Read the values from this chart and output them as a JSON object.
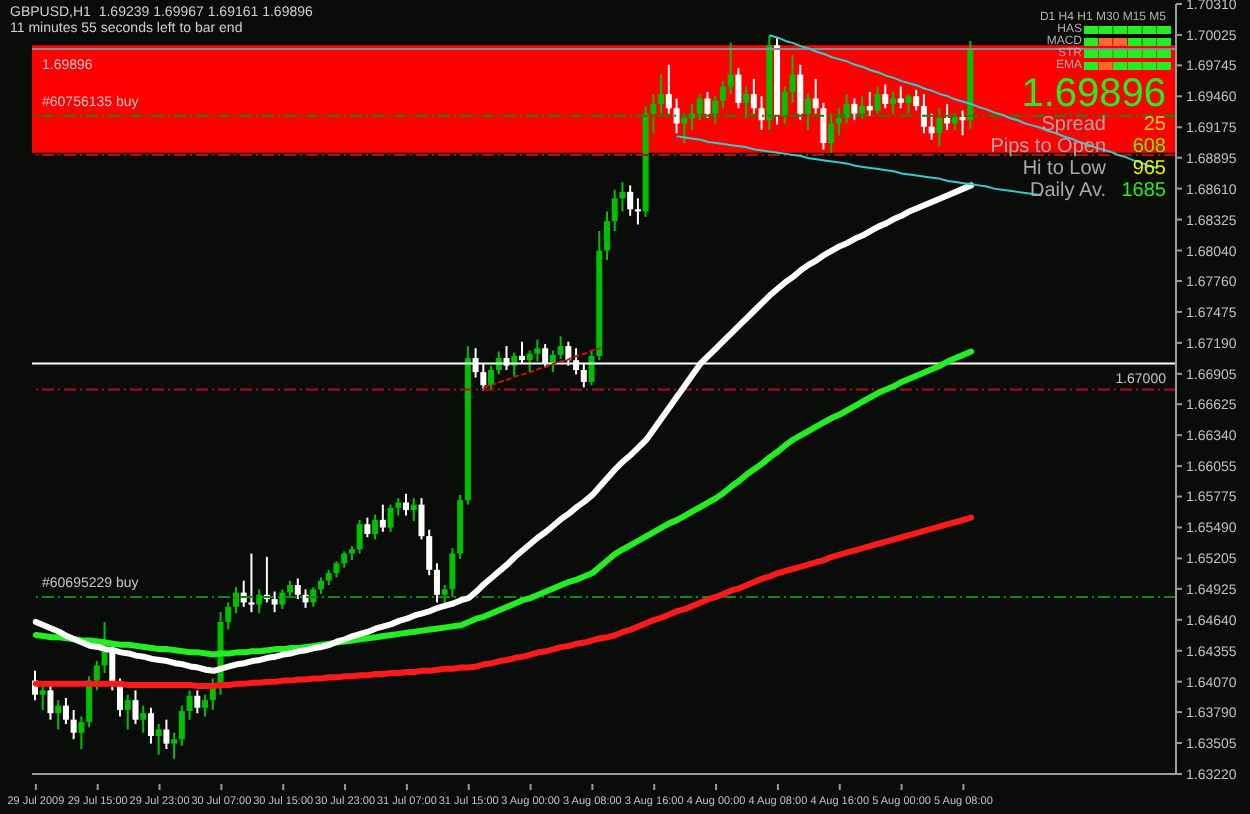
{
  "chart_data": {
    "type": "candlestick",
    "title": "GBPUSD,H1  1.69239 1.69967 1.69161 1.69896",
    "subtitle": "11 minutes 55 seconds left to bar end",
    "categories": [
      "29 Jul 2009",
      null,
      null,
      null,
      null,
      null,
      null,
      null,
      "29 Jul 15:00",
      null,
      null,
      null,
      null,
      null,
      null,
      null,
      "29 Jul 23:00",
      null,
      null,
      null,
      null,
      null,
      null,
      null,
      "30 Jul 07:00",
      null,
      null,
      null,
      null,
      null,
      null,
      null,
      "30 Jul 15:00",
      null,
      null,
      null,
      null,
      null,
      null,
      null,
      "30 Jul 23:00",
      null,
      null,
      null,
      null,
      null,
      null,
      null,
      "31 Jul 07:00",
      null,
      null,
      null,
      null,
      null,
      null,
      null,
      "31 Jul 15:00",
      null,
      null,
      null,
      null,
      null,
      null,
      null,
      "3 Aug 00:00",
      null,
      null,
      null,
      null,
      null,
      null,
      null,
      "3 Aug 08:00",
      null,
      null,
      null,
      null,
      null,
      null,
      null,
      "3 Aug 16:00",
      null,
      null,
      null,
      null,
      null,
      null,
      null,
      "4 Aug 00:00",
      null,
      null,
      null,
      null,
      null,
      null,
      null,
      "4 Aug 08:00",
      null,
      null,
      null,
      null,
      null,
      null,
      null,
      "4 Aug 16:00",
      null,
      null,
      null,
      null,
      null,
      null,
      null,
      "5 Aug 00:00",
      null,
      null,
      null,
      null,
      null,
      null,
      null,
      "5 Aug 08:00",
      null,
      null,
      null,
      null,
      null,
      null,
      null,
      null,
      null,
      null,
      null,
      null,
      null,
      null,
      null,
      null,
      null,
      null,
      null,
      null,
      null,
      null,
      null,
      null,
      null,
      null,
      null
    ],
    "ohlc": [
      [
        1.6408,
        1.6417,
        1.639,
        1.6395
      ],
      [
        1.6395,
        1.6405,
        1.6381,
        1.6399
      ],
      [
        1.6399,
        1.6404,
        1.6372,
        1.6378
      ],
      [
        1.6378,
        1.639,
        1.6363,
        1.6385
      ],
      [
        1.6385,
        1.6392,
        1.6368,
        1.6372
      ],
      [
        1.6372,
        1.6381,
        1.6354,
        1.636
      ],
      [
        1.636,
        1.6375,
        1.6345,
        1.637
      ],
      [
        1.637,
        1.6412,
        1.6365,
        1.6408
      ],
      [
        1.6408,
        1.6426,
        1.6399,
        1.6422
      ],
      [
        1.6422,
        1.6462,
        1.6415,
        1.6435
      ],
      [
        1.6435,
        1.644,
        1.6399,
        1.6404
      ],
      [
        1.6404,
        1.641,
        1.6375,
        1.6381
      ],
      [
        1.6381,
        1.6395,
        1.6363,
        1.639
      ],
      [
        1.639,
        1.6399,
        1.6368,
        1.6372
      ],
      [
        1.6372,
        1.6385,
        1.636,
        1.6378
      ],
      [
        1.6378,
        1.6383,
        1.635,
        1.6357
      ],
      [
        1.6357,
        1.6368,
        1.634,
        1.6363
      ],
      [
        1.6363,
        1.6372,
        1.6345,
        1.635
      ],
      [
        1.635,
        1.636,
        1.6336,
        1.6354
      ],
      [
        1.6354,
        1.6385,
        1.6348,
        1.638
      ],
      [
        1.638,
        1.6399,
        1.6372,
        1.6394
      ],
      [
        1.6394,
        1.6399,
        1.6378,
        1.6383
      ],
      [
        1.6383,
        1.6395,
        1.6375,
        1.639
      ],
      [
        1.639,
        1.641,
        1.6381,
        1.6404
      ],
      [
        1.6404,
        1.6471,
        1.6395,
        1.6462
      ],
      [
        1.6462,
        1.648,
        1.6455,
        1.6476
      ],
      [
        1.6476,
        1.6494,
        1.647,
        1.6489
      ],
      [
        1.6489,
        1.65,
        1.6476,
        1.648
      ],
      [
        1.648,
        1.6525,
        1.6471,
        1.6478
      ],
      [
        1.6478,
        1.6492,
        1.647,
        1.6487
      ],
      [
        1.6487,
        1.6522,
        1.648,
        1.6483
      ],
      [
        1.6483,
        1.649,
        1.6471,
        1.6478
      ],
      [
        1.6478,
        1.6492,
        1.6474,
        1.6489
      ],
      [
        1.6489,
        1.65,
        1.6485,
        1.6496
      ],
      [
        1.6496,
        1.6502,
        1.6483,
        1.6487
      ],
      [
        1.6487,
        1.6492,
        1.6475,
        1.648
      ],
      [
        1.648,
        1.6494,
        1.6476,
        1.6492
      ],
      [
        1.6492,
        1.6503,
        1.6488,
        1.65
      ],
      [
        1.65,
        1.651,
        1.6496,
        1.6507
      ],
      [
        1.6507,
        1.6518,
        1.6503,
        1.6516
      ],
      [
        1.6516,
        1.6527,
        1.6512,
        1.6525
      ],
      [
        1.6525,
        1.6532,
        1.6519,
        1.6529
      ],
      [
        1.6529,
        1.6556,
        1.6525,
        1.6552
      ],
      [
        1.6552,
        1.6558,
        1.654,
        1.6543
      ],
      [
        1.6543,
        1.6561,
        1.6538,
        1.6556
      ],
      [
        1.6556,
        1.657,
        1.6545,
        1.6549
      ],
      [
        1.6549,
        1.657,
        1.6545,
        1.6567
      ],
      [
        1.6567,
        1.6576,
        1.656,
        1.6572
      ],
      [
        1.6572,
        1.658,
        1.656,
        1.6565
      ],
      [
        1.6565,
        1.6576,
        1.6555,
        1.657
      ],
      [
        1.657,
        1.6576,
        1.6538,
        1.6541
      ],
      [
        1.6541,
        1.6547,
        1.6505,
        1.651
      ],
      [
        1.651,
        1.6516,
        1.648,
        1.6487
      ],
      [
        1.6487,
        1.6496,
        1.6474,
        1.6492
      ],
      [
        1.6492,
        1.653,
        1.6485,
        1.6525
      ],
      [
        1.6525,
        1.6579,
        1.652,
        1.6574
      ],
      [
        1.6574,
        1.6716,
        1.657,
        1.6705
      ],
      [
        1.6705,
        1.6714,
        1.6687,
        1.6692
      ],
      [
        1.6692,
        1.67,
        1.6675,
        1.668
      ],
      [
        1.668,
        1.6698,
        1.6676,
        1.6694
      ],
      [
        1.6694,
        1.6711,
        1.669,
        1.6705
      ],
      [
        1.6705,
        1.6716,
        1.6694,
        1.6698
      ],
      [
        1.6698,
        1.671,
        1.6688,
        1.6707
      ],
      [
        1.6707,
        1.672,
        1.67,
        1.6703
      ],
      [
        1.6703,
        1.6712,
        1.6692,
        1.6709
      ],
      [
        1.6709,
        1.6722,
        1.6702,
        1.6714
      ],
      [
        1.6714,
        1.6718,
        1.6696,
        1.67
      ],
      [
        1.67,
        1.6712,
        1.6692,
        1.6708
      ],
      [
        1.6708,
        1.6725,
        1.6704,
        1.6716
      ],
      [
        1.6716,
        1.672,
        1.6698,
        1.6703
      ],
      [
        1.6703,
        1.6714,
        1.669,
        1.6694
      ],
      [
        1.6694,
        1.67,
        1.6678,
        1.6683
      ],
      [
        1.6683,
        1.6712,
        1.668,
        1.6707
      ],
      [
        1.6707,
        1.6822,
        1.6703,
        1.6804
      ],
      [
        1.6804,
        1.684,
        1.6795,
        1.6831
      ],
      [
        1.6831,
        1.686,
        1.6822,
        1.6852
      ],
      [
        1.6852,
        1.6867,
        1.684,
        1.6858
      ],
      [
        1.6858,
        1.6864,
        1.6836,
        1.6842
      ],
      [
        1.6842,
        1.6852,
        1.6828,
        1.684
      ],
      [
        1.684,
        1.6937,
        1.6835,
        1.693
      ],
      [
        1.693,
        1.6948,
        1.6912,
        1.6939
      ],
      [
        1.6939,
        1.6966,
        1.693,
        1.6948
      ],
      [
        1.6948,
        1.6975,
        1.693,
        1.6935
      ],
      [
        1.6935,
        1.6944,
        1.6912,
        1.6921
      ],
      [
        1.6921,
        1.693,
        1.6903,
        1.6926
      ],
      [
        1.6926,
        1.6939,
        1.6915,
        1.693
      ],
      [
        1.693,
        1.6948,
        1.6924,
        1.6944
      ],
      [
        1.6944,
        1.695,
        1.6926,
        1.693
      ],
      [
        1.693,
        1.6946,
        1.6921,
        1.6942
      ],
      [
        1.6942,
        1.696,
        1.6935,
        1.6955
      ],
      [
        1.6955,
        1.6995,
        1.6948,
        1.6966
      ],
      [
        1.6966,
        1.6972,
        1.6935,
        1.694
      ],
      [
        1.694,
        1.6955,
        1.6926,
        1.6948
      ],
      [
        1.6948,
        1.6962,
        1.693,
        1.6935
      ],
      [
        1.6935,
        1.6946,
        1.6915,
        1.6924
      ],
      [
        1.6924,
        1.7002,
        1.6915,
        1.6993
      ],
      [
        1.6993,
        1.7,
        1.692,
        1.6928
      ],
      [
        1.6928,
        1.6955,
        1.6921,
        1.695
      ],
      [
        1.695,
        1.6984,
        1.694,
        1.6966
      ],
      [
        1.6966,
        1.6975,
        1.6924,
        1.693
      ],
      [
        1.693,
        1.6948,
        1.6915,
        1.6944
      ],
      [
        1.6944,
        1.6962,
        1.693,
        1.6935
      ],
      [
        1.6935,
        1.694,
        1.6897,
        1.6903
      ],
      [
        1.6903,
        1.693,
        1.6894,
        1.6921
      ],
      [
        1.6921,
        1.6935,
        1.691,
        1.6926
      ],
      [
        1.6926,
        1.6948,
        1.6921,
        1.6939
      ],
      [
        1.6939,
        1.6944,
        1.6924,
        1.693
      ],
      [
        1.693,
        1.6946,
        1.6926,
        1.6937
      ],
      [
        1.6937,
        1.695,
        1.6928,
        1.6933
      ],
      [
        1.6933,
        1.6955,
        1.693,
        1.6948
      ],
      [
        1.6948,
        1.6957,
        1.6935,
        1.6939
      ],
      [
        1.6939,
        1.695,
        1.693,
        1.6944
      ],
      [
        1.6944,
        1.6955,
        1.6935,
        1.694
      ],
      [
        1.694,
        1.6948,
        1.693,
        1.6946
      ],
      [
        1.6946,
        1.6952,
        1.6933,
        1.6937
      ],
      [
        1.6937,
        1.6948,
        1.6912,
        1.6918
      ],
      [
        1.6918,
        1.693,
        1.6906,
        1.6912
      ],
      [
        1.6912,
        1.6935,
        1.69,
        1.6926
      ],
      [
        1.6926,
        1.6939,
        1.6915,
        1.6921
      ],
      [
        1.6921,
        1.693,
        1.6915,
        1.6927
      ],
      [
        1.6927,
        1.6933,
        1.691,
        1.6924
      ],
      [
        1.6924,
        1.6997,
        1.6916,
        1.699
      ],
      null,
      null,
      null,
      null,
      null,
      null,
      null,
      null,
      null,
      null,
      null,
      null,
      null,
      null,
      null,
      null,
      null,
      null,
      null,
      null,
      null,
      null,
      null,
      null,
      null,
      null
    ],
    "colors": [
      "#ffffff",
      "#00c000",
      "#ffffff",
      "#00c000",
      "#ffffff",
      "#ffffff",
      "#00c000",
      "#00c000",
      "#00c000",
      "#00c000",
      "#ffffff",
      "#ffffff",
      "#00c000",
      "#ffffff",
      "#00c000",
      "#ffffff",
      "#00c000",
      "#ffffff",
      "#00c000",
      "#00c000",
      "#00c000",
      "#ffffff",
      "#00c000",
      "#00c000",
      "#00c000",
      "#00c000",
      "#00c000",
      "#ffffff",
      "#ffffff",
      "#00c000",
      "#ffffff",
      "#ffffff",
      "#00c000",
      "#00c000",
      "#ffffff",
      "#ffffff",
      "#00c000",
      "#00c000",
      "#00c000",
      "#00c000",
      "#00c000",
      "#00c000",
      "#00c000",
      "#ffffff",
      "#00c000",
      "#ffffff",
      "#00c000",
      "#00c000",
      "#ffffff",
      "#00c000",
      "#ffffff",
      "#ffffff",
      "#ffffff",
      "#00c000",
      "#00c000",
      "#00c000",
      "#00c000",
      "#ffffff",
      "#ffffff",
      "#00c000",
      "#00c000",
      "#ffffff",
      "#00c000",
      "#ffffff",
      "#00c000",
      "#00c000",
      "#ffffff",
      "#00c000",
      "#00c000",
      "#ffffff",
      "#ffffff",
      "#ffffff",
      "#00c000",
      "#00c000",
      "#00c000",
      "#00c000",
      "#00c000",
      "#ffffff",
      "#ffffff",
      "#00c000",
      "#00c000",
      "#00c000",
      "#ffffff",
      "#ffffff",
      "#00c000",
      "#00c000",
      "#00c000",
      "#ffffff",
      "#00c000",
      "#00c000",
      "#00c000",
      "#ffffff",
      "#00c000",
      "#ffffff",
      "#ffffff",
      "#00c000",
      "#ffffff",
      "#00c000",
      "#00c000",
      "#ffffff",
      "#00c000",
      "#ffffff",
      "#ffffff",
      "#00c000",
      "#00c000",
      "#00c000",
      "#ffffff",
      "#00c000",
      "#ffffff",
      "#00c000",
      "#ffffff",
      "#00c000",
      "#ffffff",
      "#00c000",
      "#ffffff",
      "#ffffff",
      "#ffffff",
      "#00c000",
      "#ffffff",
      "#00c000",
      "#ffffff",
      "#00c000",
      null,
      null,
      null,
      null,
      null,
      null,
      null,
      null,
      null,
      null,
      null,
      null,
      null,
      null,
      null,
      null,
      null,
      null,
      null,
      null,
      null,
      null,
      null,
      null,
      null,
      null
    ],
    "series": [
      {
        "type": "line",
        "color": "#ff1a1a",
        "values": [
          1.6405,
          1.6405,
          1.6405,
          1.6405,
          1.6405,
          1.6405,
          1.6405,
          1.6405,
          1.6405,
          1.6405,
          1.6405,
          1.6405,
          1.6404,
          1.6404,
          1.6404,
          1.6404,
          1.6404,
          1.6404,
          1.6404,
          1.6404,
          1.6404,
          1.6403,
          1.6403,
          1.6403,
          1.6404,
          1.6404,
          1.6405,
          1.6405,
          1.6406,
          1.6406,
          1.6407,
          1.6407,
          1.6408,
          1.6408,
          1.6409,
          1.6409,
          1.641,
          1.641,
          1.6411,
          1.6411,
          1.6412,
          1.6412,
          1.6413,
          1.6413,
          1.6414,
          1.6414,
          1.6415,
          1.6415,
          1.6416,
          1.6416,
          1.6417,
          1.6417,
          1.6418,
          1.6419,
          1.6419,
          1.642,
          1.642,
          1.6421,
          1.6423,
          1.6424,
          1.6426,
          1.6427,
          1.6429,
          1.643,
          1.6432,
          1.6434,
          1.6435,
          1.6437,
          1.6439,
          1.644,
          1.6442,
          1.6443,
          1.6445,
          1.6447,
          1.6448,
          1.645,
          1.6453,
          1.6455,
          1.6458,
          1.6461,
          1.6464,
          1.6466,
          1.6469,
          1.6472,
          1.6474,
          1.6477,
          1.648,
          1.6483,
          1.6485,
          1.6488,
          1.6491,
          1.6493,
          1.6496,
          1.6499,
          1.6502,
          1.6504,
          1.6507,
          1.6509,
          1.6511,
          1.6513,
          1.6515,
          1.6517,
          1.6519,
          1.6522,
          1.6524,
          1.6526,
          1.6528,
          1.653,
          1.6532,
          1.6534,
          1.6536,
          1.6538,
          1.654,
          1.6542,
          1.6544,
          1.6546,
          1.6548,
          1.655,
          1.6552,
          1.6554,
          1.6556,
          1.6558,
          null,
          null,
          null,
          null,
          null,
          null,
          null,
          null,
          null,
          null,
          null,
          null,
          null,
          null,
          null,
          null,
          null,
          null,
          null,
          null,
          null,
          null,
          null,
          null,
          null,
          null
        ]
      },
      {
        "type": "line",
        "color": "#22ee22",
        "values": [
          1.645,
          1.6449,
          1.6448,
          1.6448,
          1.6447,
          1.6446,
          1.6445,
          1.6445,
          1.6444,
          1.6443,
          1.6442,
          1.6441,
          1.6441,
          1.644,
          1.6439,
          1.6438,
          1.6437,
          1.6437,
          1.6436,
          1.6435,
          1.6434,
          1.6434,
          1.6433,
          1.6432,
          1.6433,
          1.6433,
          1.6434,
          1.6434,
          1.6435,
          1.6435,
          1.6436,
          1.6437,
          1.6437,
          1.6438,
          1.6438,
          1.6439,
          1.644,
          1.6441,
          1.6442,
          1.6443,
          1.6444,
          1.6445,
          1.6446,
          1.6447,
          1.6448,
          1.6449,
          1.645,
          1.6451,
          1.6452,
          1.6453,
          1.6454,
          1.6455,
          1.6456,
          1.6457,
          1.6458,
          1.6459,
          1.6462,
          1.6465,
          1.6467,
          1.647,
          1.6473,
          1.6476,
          1.6479,
          1.6482,
          1.6484,
          1.6487,
          1.649,
          1.6493,
          1.6496,
          1.6499,
          1.6501,
          1.6504,
          1.6507,
          1.6513,
          1.6519,
          1.6525,
          1.6529,
          1.6533,
          1.6537,
          1.6541,
          1.6545,
          1.6549,
          1.6553,
          1.6556,
          1.656,
          1.6564,
          1.6568,
          1.6572,
          1.6576,
          1.6581,
          1.6587,
          1.6592,
          1.6598,
          1.6603,
          1.6608,
          1.6614,
          1.6619,
          1.6625,
          1.663,
          1.6634,
          1.6638,
          1.6642,
          1.6646,
          1.665,
          1.6653,
          1.6657,
          1.6661,
          1.6665,
          1.6669,
          1.6673,
          1.6676,
          1.6679,
          1.6683,
          1.6686,
          1.6689,
          1.6692,
          1.6695,
          1.6698,
          1.6702,
          1.6705,
          1.6708,
          1.6711,
          null,
          null,
          null,
          null,
          null,
          null,
          null,
          null,
          null,
          null,
          null,
          null,
          null,
          null,
          null,
          null,
          null,
          null,
          null,
          null,
          null,
          null,
          null,
          null,
          null,
          null
        ]
      },
      {
        "type": "line",
        "color": "#ffffff",
        "values": [
          1.6462,
          1.6459,
          1.6456,
          1.6453,
          1.6449,
          1.6446,
          1.6443,
          1.644,
          1.6439,
          1.6437,
          1.6436,
          1.6434,
          1.6433,
          1.6431,
          1.643,
          1.6428,
          1.6427,
          1.6426,
          1.6424,
          1.6423,
          1.6421,
          1.642,
          1.6418,
          1.6417,
          1.6419,
          1.6421,
          1.6423,
          1.6424,
          1.6426,
          1.6427,
          1.6429,
          1.643,
          1.6432,
          1.6433,
          1.6435,
          1.6436,
          1.6438,
          1.6439,
          1.6441,
          1.6444,
          1.6446,
          1.6449,
          1.6451,
          1.6453,
          1.6456,
          1.6458,
          1.646,
          1.6463,
          1.6465,
          1.6468,
          1.647,
          1.6472,
          1.6475,
          1.6477,
          1.6479,
          1.6482,
          1.6484,
          1.649,
          1.6497,
          1.6503,
          1.6509,
          1.6515,
          1.6522,
          1.6528,
          1.6534,
          1.654,
          1.6545,
          1.6551,
          1.6557,
          1.6562,
          1.6568,
          1.6573,
          1.6579,
          1.6587,
          1.6595,
          1.6603,
          1.661,
          1.6616,
          1.6623,
          1.663,
          1.664,
          1.665,
          1.666,
          1.667,
          1.668,
          1.669,
          1.67,
          1.6707,
          1.6714,
          1.6721,
          1.6728,
          1.6735,
          1.6742,
          1.6749,
          1.6756,
          1.6763,
          1.6769,
          1.6775,
          1.678,
          1.6786,
          1.6791,
          1.6795,
          1.68,
          1.6804,
          1.6808,
          1.6811,
          1.6815,
          1.6818,
          1.6822,
          1.6826,
          1.6829,
          1.6833,
          1.6836,
          1.684,
          1.6843,
          1.6846,
          1.6849,
          1.6852,
          1.6855,
          1.6858,
          1.6861,
          1.6864,
          null,
          null,
          null,
          null,
          null,
          null,
          null,
          null,
          null,
          null,
          null,
          null,
          null,
          null,
          null,
          null,
          null,
          null,
          null,
          null,
          null,
          null,
          null,
          null,
          null,
          null
        ]
      },
      {
        "type": "line",
        "color": "#33cccc",
        "values": [
          null,
          null,
          null,
          null,
          null,
          null,
          null,
          null,
          null,
          null,
          null,
          null,
          null,
          null,
          null,
          null,
          null,
          null,
          null,
          null,
          null,
          null,
          null,
          null,
          null,
          null,
          null,
          null,
          null,
          null,
          null,
          null,
          null,
          null,
          null,
          null,
          null,
          null,
          null,
          null,
          null,
          null,
          null,
          null,
          null,
          null,
          null,
          null,
          null,
          null,
          null,
          null,
          null,
          null,
          null,
          null,
          null,
          null,
          null,
          null,
          null,
          null,
          null,
          null,
          null,
          null,
          null,
          null,
          null,
          null,
          null,
          null,
          null,
          null,
          null,
          null,
          null,
          null,
          null,
          null,
          null,
          null,
          null,
          null,
          null,
          null,
          null,
          null,
          null,
          null,
          null,
          null,
          null,
          null,
          null,
          1.7002,
          1.7,
          1.6997,
          1.6995,
          1.6992,
          1.699,
          1.6987,
          1.6985,
          1.6982,
          1.698,
          1.6978,
          1.6975,
          1.6973,
          1.697,
          1.6968,
          1.6965,
          1.6963,
          1.696,
          1.6958,
          1.6956,
          1.6953,
          1.6951,
          1.6948,
          1.6946,
          1.6943,
          1.6941,
          1.6939,
          1.6936,
          1.6934,
          1.6931,
          1.6929,
          1.6926,
          1.6924,
          1.6921,
          1.6919,
          1.6917,
          1.6914,
          1.6912,
          1.6909,
          1.6907,
          1.6904,
          1.6902,
          1.6899,
          1.6897,
          1.6895,
          1.6892,
          1.689,
          1.6887,
          1.6885,
          1.6882,
          1.688,
          null,
          null
        ]
      },
      {
        "type": "line",
        "color": "#33cccc",
        "values": [
          null,
          null,
          null,
          null,
          null,
          null,
          null,
          null,
          null,
          null,
          null,
          null,
          null,
          null,
          null,
          null,
          null,
          null,
          null,
          null,
          null,
          null,
          null,
          null,
          null,
          null,
          null,
          null,
          null,
          null,
          null,
          null,
          null,
          null,
          null,
          null,
          null,
          null,
          null,
          null,
          null,
          null,
          null,
          null,
          null,
          null,
          null,
          null,
          null,
          null,
          null,
          null,
          null,
          null,
          null,
          null,
          null,
          null,
          null,
          null,
          null,
          null,
          null,
          null,
          null,
          null,
          null,
          null,
          null,
          null,
          null,
          null,
          null,
          null,
          null,
          null,
          null,
          null,
          null,
          null,
          null,
          null,
          null,
          1.6909,
          1.6908,
          1.6907,
          1.6906,
          1.6904,
          1.6903,
          1.6902,
          1.6901,
          1.69,
          1.6899,
          1.6897,
          1.6896,
          1.6895,
          1.6894,
          1.6893,
          1.6892,
          1.6891,
          1.6889,
          1.6888,
          1.6887,
          1.6886,
          1.6885,
          1.6884,
          1.6882,
          1.6881,
          1.688,
          1.6879,
          1.6878,
          1.6877,
          1.6875,
          1.6874,
          1.6873,
          1.6872,
          1.6871,
          1.687,
          1.6868,
          1.6867,
          1.6866,
          1.6865,
          1.6864,
          1.6863,
          1.6861,
          1.686,
          1.6859,
          1.6858,
          1.6857,
          1.6856,
          1.6855,
          null,
          null,
          null,
          null,
          null,
          null,
          null,
          null,
          null,
          null,
          null,
          null,
          null,
          null,
          null,
          null,
          null
        ]
      },
      {
        "type": "line",
        "color": "#cc1111",
        "line_style": "dotted",
        "values": [
          null,
          null,
          null,
          null,
          null,
          null,
          null,
          null,
          null,
          null,
          null,
          null,
          null,
          null,
          null,
          null,
          null,
          null,
          null,
          null,
          null,
          null,
          null,
          null,
          null,
          null,
          null,
          null,
          null,
          null,
          null,
          null,
          null,
          null,
          null,
          null,
          null,
          null,
          null,
          null,
          null,
          null,
          null,
          null,
          null,
          null,
          null,
          null,
          null,
          null,
          null,
          null,
          null,
          null,
          null,
          null,
          null,
          null,
          1.6678,
          1.668,
          1.6683,
          1.6685,
          1.6688,
          1.669,
          1.6692,
          1.6695,
          1.6697,
          1.67,
          1.6702,
          1.6704,
          1.6707,
          1.6709,
          1.6712,
          1.6714,
          null,
          null,
          null,
          null,
          null,
          null,
          null,
          null,
          null,
          null,
          null,
          null,
          null,
          null,
          null,
          null,
          null,
          null,
          null,
          null,
          null,
          null,
          null,
          null,
          null,
          null,
          null,
          null,
          null,
          null,
          null,
          null,
          null,
          null,
          null,
          null,
          null,
          null,
          null,
          null,
          null,
          null,
          null,
          null,
          null,
          null,
          null,
          null,
          null,
          null,
          null,
          null,
          null,
          null,
          null,
          null,
          null,
          null,
          null,
          null,
          null,
          null,
          null,
          null,
          null,
          null,
          null,
          null,
          null,
          null,
          null,
          null,
          null,
          null
        ]
      }
    ],
    "ylim": [
      1.6322,
      1.7031
    ],
    "yticks": [
      {
        "value": 1.6322,
        "label": "1.63220"
      },
      {
        "value": 1.63505,
        "label": "1.63505"
      },
      {
        "value": 1.6379,
        "label": "1.63790"
      },
      {
        "value": 1.6407,
        "label": "1.64070"
      },
      {
        "value": 1.64355,
        "label": "1.64355"
      },
      {
        "value": 1.6464,
        "label": "1.64640"
      },
      {
        "value": 1.64925,
        "label": "1.64925"
      },
      {
        "value": 1.65205,
        "label": "1.65205"
      },
      {
        "value": 1.6549,
        "label": "1.65490"
      },
      {
        "value": 1.65775,
        "label": "1.65775"
      },
      {
        "value": 1.66055,
        "label": "1.66055"
      },
      {
        "value": 1.6634,
        "label": "1.66340"
      },
      {
        "value": 1.66625,
        "label": "1.66625"
      },
      {
        "value": 1.66905,
        "label": "1.66905"
      },
      {
        "value": 1.6719,
        "label": "1.67190"
      },
      {
        "value": 1.67475,
        "label": "1.67475"
      },
      {
        "value": 1.6776,
        "label": "1.67760"
      },
      {
        "value": 1.6804,
        "label": "1.68040"
      },
      {
        "value": 1.68325,
        "label": "1.68325"
      },
      {
        "value": 1.6861,
        "label": "1.68610"
      },
      {
        "value": 1.68895,
        "label": "1.68895"
      },
      {
        "value": 1.69175,
        "label": "1.69175"
      },
      {
        "value": 1.6946,
        "label": "1.69460"
      },
      {
        "value": 1.69745,
        "label": "1.69745"
      },
      {
        "value": 1.70025,
        "label": "1.70025"
      },
      {
        "value": 1.7031,
        "label": "1.70310"
      }
    ],
    "ref_lines": [
      {
        "axis": "y",
        "value": 1.69896,
        "label": "1.69896",
        "color": "#8a8a8a",
        "line_style": "solid"
      },
      {
        "axis": "y",
        "value": 1.6928,
        "label": "#60756135 buy",
        "color": "#118811",
        "line_style": "dashed"
      },
      {
        "axis": "y",
        "value": 1.6892,
        "label": null,
        "color": "#aa1111",
        "line_style": "dashed"
      },
      {
        "axis": "y",
        "value": 1.67,
        "label": "1.67000",
        "color": "#ffffff",
        "line_style": "solid"
      },
      {
        "axis": "y",
        "value": 1.6676,
        "label": null,
        "color": "#aa1111",
        "line_style": "dashed"
      },
      {
        "axis": "y",
        "value": 1.6485,
        "label": "#60695229 buy",
        "color": "#118811",
        "line_style": "dashed"
      }
    ],
    "bands": [
      {
        "axis": "y",
        "from": 1.6894,
        "to": 1.6993,
        "color": "#ff0000"
      }
    ],
    "annotations": [
      "D1 H4 H1 M30 M15 M5",
      "HAS",
      "MACD",
      "STR",
      "EMA",
      "1.69896",
      "Spread",
      "25",
      "Pips to Open",
      "608",
      "Hi to Low",
      "965",
      "Daily Av.",
      "1685"
    ]
  }
}
